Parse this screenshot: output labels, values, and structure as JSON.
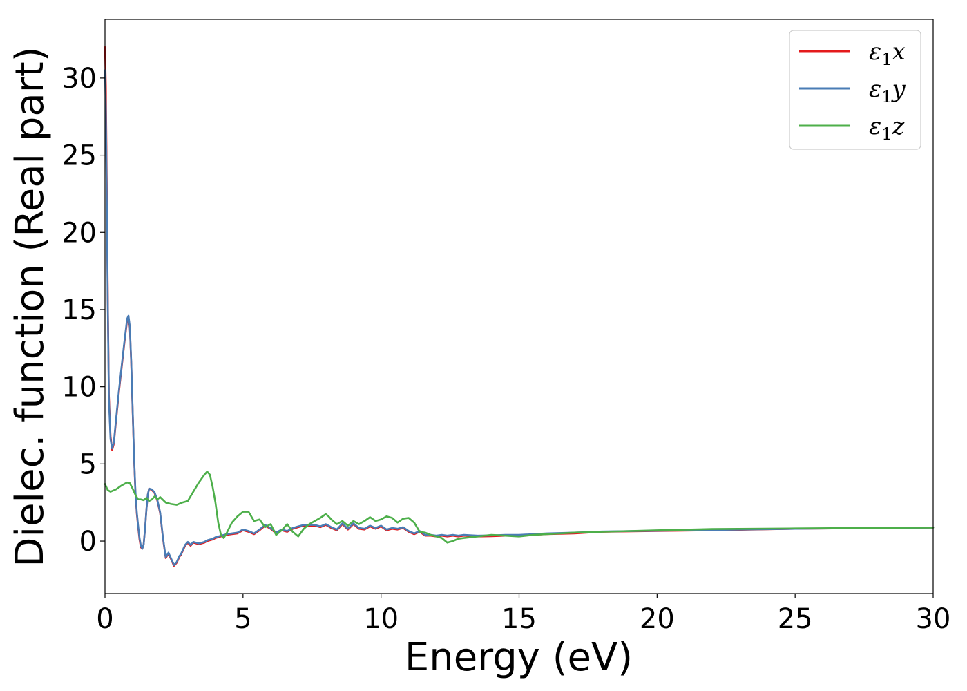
{
  "chart_data": {
    "type": "line",
    "title": "",
    "xlabel": "Energy (eV)",
    "ylabel": "Dielec. function (Real part)",
    "xlim": [
      0,
      30
    ],
    "ylim": [
      -3.4,
      33.8
    ],
    "xticks": [
      0,
      5,
      10,
      15,
      20,
      25,
      30
    ],
    "yticks": [
      0,
      5,
      10,
      15,
      20,
      25,
      30
    ],
    "grid": false,
    "legend_position": "top-right",
    "series": [
      {
        "name": "ε₁x",
        "legend_base": "ε",
        "legend_sub": "1",
        "legend_var": "x",
        "color": "#e41a1c",
        "x": [
          0.0,
          0.03,
          0.06,
          0.1,
          0.14,
          0.2,
          0.26,
          0.32,
          0.4,
          0.5,
          0.6,
          0.7,
          0.8,
          0.85,
          0.9,
          0.95,
          1.0,
          1.05,
          1.1,
          1.15,
          1.2,
          1.25,
          1.3,
          1.35,
          1.4,
          1.45,
          1.5,
          1.55,
          1.6,
          1.7,
          1.8,
          1.9,
          2.0,
          2.1,
          2.2,
          2.3,
          2.4,
          2.5,
          2.6,
          2.7,
          2.75,
          2.8,
          2.9,
          3.0,
          3.1,
          3.2,
          3.4,
          3.6,
          3.7,
          3.8,
          3.9,
          4.0,
          4.2,
          4.4,
          4.6,
          4.8,
          5.0,
          5.2,
          5.4,
          5.6,
          5.8,
          6.0,
          6.2,
          6.4,
          6.6,
          6.8,
          7.0,
          7.2,
          7.4,
          7.6,
          7.8,
          8.0,
          8.2,
          8.4,
          8.6,
          8.8,
          9.0,
          9.2,
          9.4,
          9.6,
          9.8,
          10.0,
          10.2,
          10.4,
          10.6,
          10.8,
          11.0,
          11.2,
          11.4,
          11.6,
          11.8,
          12.0,
          12.2,
          12.4,
          12.6,
          12.8,
          13.0,
          13.5,
          14.0,
          14.5,
          15.0,
          16.0,
          17.0,
          18.0,
          20.0,
          22.0,
          25.0,
          28.0,
          30.0
        ],
        "y": [
          32.0,
          29.5,
          24.0,
          16.0,
          9.5,
          6.8,
          5.9,
          6.3,
          7.8,
          9.6,
          11.2,
          12.8,
          14.3,
          14.5,
          13.8,
          11.5,
          8.5,
          5.5,
          3.2,
          1.8,
          0.9,
          0.1,
          -0.4,
          -0.5,
          -0.2,
          0.8,
          2.0,
          3.0,
          3.4,
          3.3,
          3.1,
          2.6,
          1.8,
          0.2,
          -1.1,
          -0.8,
          -1.2,
          -1.6,
          -1.4,
          -1.0,
          -0.9,
          -0.7,
          -0.3,
          -0.1,
          -0.3,
          -0.1,
          -0.2,
          -0.1,
          0.0,
          0.05,
          0.1,
          0.2,
          0.3,
          0.4,
          0.45,
          0.5,
          0.7,
          0.6,
          0.45,
          0.7,
          1.0,
          0.8,
          0.5,
          0.7,
          0.6,
          0.8,
          0.9,
          1.0,
          1.0,
          1.0,
          0.9,
          1.05,
          0.85,
          0.7,
          1.1,
          0.75,
          1.1,
          0.8,
          0.75,
          0.95,
          0.8,
          0.95,
          0.7,
          0.8,
          0.75,
          0.85,
          0.6,
          0.45,
          0.6,
          0.35,
          0.35,
          0.3,
          0.35,
          0.3,
          0.35,
          0.3,
          0.35,
          0.3,
          0.32,
          0.35,
          0.35,
          0.45,
          0.5,
          0.6,
          0.65,
          0.7,
          0.8,
          0.85,
          0.88
        ]
      },
      {
        "name": "ε₁y",
        "legend_base": "ε",
        "legend_sub": "1",
        "legend_var": "y",
        "color": "#4a7cb5",
        "x": [
          0.0,
          0.03,
          0.06,
          0.1,
          0.14,
          0.2,
          0.26,
          0.32,
          0.4,
          0.5,
          0.6,
          0.7,
          0.8,
          0.85,
          0.9,
          0.95,
          1.0,
          1.05,
          1.1,
          1.15,
          1.2,
          1.25,
          1.3,
          1.35,
          1.4,
          1.45,
          1.5,
          1.55,
          1.6,
          1.7,
          1.8,
          1.9,
          2.0,
          2.1,
          2.2,
          2.3,
          2.4,
          2.5,
          2.6,
          2.7,
          2.75,
          2.8,
          2.9,
          3.0,
          3.1,
          3.2,
          3.4,
          3.6,
          3.7,
          3.8,
          3.9,
          4.0,
          4.2,
          4.4,
          4.6,
          4.8,
          5.0,
          5.2,
          5.4,
          5.6,
          5.8,
          6.0,
          6.2,
          6.4,
          6.6,
          6.8,
          7.0,
          7.2,
          7.4,
          7.6,
          7.8,
          8.0,
          8.2,
          8.4,
          8.6,
          8.8,
          9.0,
          9.2,
          9.4,
          9.6,
          9.8,
          10.0,
          10.2,
          10.4,
          10.6,
          10.8,
          11.0,
          11.2,
          11.4,
          11.6,
          11.8,
          12.0,
          12.2,
          12.4,
          12.6,
          12.8,
          13.0,
          13.5,
          14.0,
          14.5,
          15.0,
          16.0,
          17.0,
          18.0,
          20.0,
          22.0,
          25.0,
          28.0,
          30.0
        ],
        "y": [
          30.5,
          28.0,
          23.0,
          15.5,
          9.2,
          6.6,
          6.0,
          6.4,
          7.9,
          9.7,
          11.3,
          12.9,
          14.4,
          14.6,
          13.9,
          11.6,
          8.6,
          5.6,
          3.3,
          1.9,
          1.0,
          0.2,
          -0.3,
          -0.5,
          -0.2,
          0.8,
          2.0,
          3.0,
          3.4,
          3.35,
          3.15,
          2.65,
          1.85,
          0.25,
          -1.05,
          -0.75,
          -1.15,
          -1.55,
          -1.35,
          -0.95,
          -0.85,
          -0.65,
          -0.25,
          -0.05,
          -0.25,
          -0.05,
          -0.15,
          -0.05,
          0.05,
          0.1,
          0.15,
          0.25,
          0.35,
          0.45,
          0.5,
          0.55,
          0.75,
          0.65,
          0.5,
          0.75,
          1.05,
          0.85,
          0.55,
          0.75,
          0.65,
          0.85,
          0.95,
          1.05,
          1.05,
          1.05,
          0.95,
          1.1,
          0.9,
          0.75,
          1.15,
          0.8,
          1.15,
          0.85,
          0.8,
          1.0,
          0.85,
          1.0,
          0.75,
          0.85,
          0.8,
          0.9,
          0.65,
          0.5,
          0.65,
          0.4,
          0.4,
          0.35,
          0.4,
          0.35,
          0.4,
          0.35,
          0.4,
          0.35,
          0.37,
          0.4,
          0.4,
          0.5,
          0.55,
          0.62,
          0.67,
          0.72,
          0.8,
          0.85,
          0.88
        ]
      },
      {
        "name": "ε₁z",
        "legend_base": "ε",
        "legend_sub": "1",
        "legend_var": "z",
        "color": "#4daf4a",
        "x": [
          0.0,
          0.1,
          0.2,
          0.4,
          0.6,
          0.8,
          0.9,
          1.0,
          1.1,
          1.2,
          1.3,
          1.4,
          1.5,
          1.6,
          1.7,
          1.8,
          1.9,
          2.0,
          2.2,
          2.4,
          2.6,
          2.8,
          3.0,
          3.2,
          3.4,
          3.6,
          3.7,
          3.8,
          3.9,
          4.0,
          4.1,
          4.2,
          4.3,
          4.4,
          4.6,
          4.8,
          5.0,
          5.2,
          5.4,
          5.6,
          5.8,
          6.0,
          6.2,
          6.4,
          6.6,
          6.8,
          7.0,
          7.2,
          7.4,
          7.6,
          7.8,
          8.0,
          8.1,
          8.2,
          8.4,
          8.6,
          8.8,
          9.0,
          9.2,
          9.4,
          9.6,
          9.8,
          10.0,
          10.2,
          10.4,
          10.6,
          10.8,
          11.0,
          11.2,
          11.4,
          11.6,
          11.8,
          12.0,
          12.2,
          12.4,
          12.6,
          12.8,
          13.0,
          13.5,
          14.0,
          14.5,
          15.0,
          15.5,
          16.0,
          17.0,
          18.0,
          20.0,
          22.0,
          25.0,
          28.0,
          30.0
        ],
        "y": [
          3.7,
          3.3,
          3.2,
          3.35,
          3.6,
          3.8,
          3.75,
          3.4,
          3.0,
          2.7,
          2.7,
          2.65,
          2.8,
          2.6,
          2.7,
          2.9,
          2.7,
          2.85,
          2.5,
          2.4,
          2.35,
          2.5,
          2.6,
          3.2,
          3.8,
          4.3,
          4.5,
          4.3,
          3.5,
          2.5,
          1.2,
          0.4,
          0.2,
          0.5,
          1.2,
          1.6,
          1.9,
          1.9,
          1.3,
          1.4,
          0.9,
          1.1,
          0.4,
          0.7,
          1.1,
          0.6,
          0.3,
          0.8,
          1.1,
          1.3,
          1.5,
          1.75,
          1.6,
          1.4,
          1.1,
          1.3,
          1.0,
          1.3,
          1.1,
          1.3,
          1.55,
          1.3,
          1.4,
          1.6,
          1.5,
          1.2,
          1.45,
          1.5,
          1.2,
          0.6,
          0.55,
          0.4,
          0.3,
          0.2,
          -0.1,
          0.0,
          0.15,
          0.2,
          0.3,
          0.4,
          0.35,
          0.3,
          0.4,
          0.45,
          0.55,
          0.6,
          0.7,
          0.78,
          0.82,
          0.86,
          0.88
        ]
      }
    ]
  }
}
